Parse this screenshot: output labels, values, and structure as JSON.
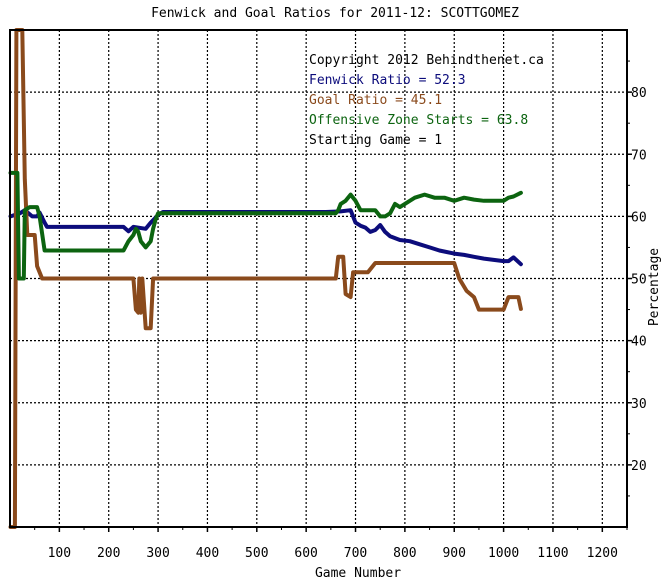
{
  "chart_data": {
    "type": "line",
    "title": "Fenwick and Goal Ratios for 2011-12: SCOTTGOMEZ",
    "xlabel": "Game Number",
    "ylabel": "Percentage",
    "xlim": [
      0,
      1250
    ],
    "ylim": [
      10,
      90
    ],
    "x_ticks": [
      100,
      200,
      300,
      400,
      500,
      600,
      700,
      800,
      900,
      1000,
      1100,
      1200
    ],
    "y_ticks": [
      20,
      30,
      40,
      50,
      60,
      70,
      80
    ],
    "grid": true,
    "legend_placement": "top-right",
    "annotations": [
      {
        "text": "Copyright 2012 Behindthenet.ca",
        "color": "#000000"
      },
      {
        "text": "Fenwick Ratio = 52.3",
        "color": "#0c0c7c"
      },
      {
        "text": "Goal Ratio = 45.1",
        "color": "#8a4a1c"
      },
      {
        "text": "Offensive Zone Starts = 63.8",
        "color": "#0c6410"
      },
      {
        "text": "Starting Game = 1",
        "color": "#000000"
      }
    ],
    "series": [
      {
        "name": "Fenwick Ratio",
        "color": "#0c0c7c",
        "points": [
          [
            1,
            60
          ],
          [
            20,
            60.5
          ],
          [
            30,
            61
          ],
          [
            45,
            60
          ],
          [
            55,
            60
          ],
          [
            60,
            60.6
          ],
          [
            70,
            59
          ],
          [
            75,
            58.3
          ],
          [
            230,
            58.3
          ],
          [
            240,
            57.6
          ],
          [
            250,
            58.3
          ],
          [
            275,
            58
          ],
          [
            285,
            59
          ],
          [
            300,
            60.2
          ],
          [
            310,
            60.7
          ],
          [
            640,
            60.7
          ],
          [
            670,
            60.8
          ],
          [
            690,
            61
          ],
          [
            700,
            59
          ],
          [
            710,
            58.5
          ],
          [
            720,
            58.2
          ],
          [
            730,
            57.5
          ],
          [
            740,
            57.8
          ],
          [
            750,
            58.6
          ],
          [
            760,
            57.5
          ],
          [
            770,
            56.8
          ],
          [
            790,
            56.2
          ],
          [
            810,
            56
          ],
          [
            830,
            55.5
          ],
          [
            850,
            55
          ],
          [
            870,
            54.5
          ],
          [
            900,
            54
          ],
          [
            920,
            53.8
          ],
          [
            940,
            53.5
          ],
          [
            960,
            53.2
          ],
          [
            980,
            53
          ],
          [
            1000,
            52.8
          ],
          [
            1010,
            52.8
          ],
          [
            1020,
            53.4
          ],
          [
            1035,
            52.3
          ]
        ]
      },
      {
        "name": "Goal Ratio",
        "color": "#8a4a1c",
        "points": [
          [
            1,
            10
          ],
          [
            10,
            10
          ],
          [
            13,
            90
          ],
          [
            25,
            90
          ],
          [
            30,
            66
          ],
          [
            35,
            57
          ],
          [
            50,
            57
          ],
          [
            55,
            52
          ],
          [
            65,
            50
          ],
          [
            250,
            50
          ],
          [
            255,
            45
          ],
          [
            260,
            44.5
          ],
          [
            262,
            50
          ],
          [
            265,
            44.5
          ],
          [
            268,
            50
          ],
          [
            275,
            42
          ],
          [
            285,
            42
          ],
          [
            290,
            50
          ],
          [
            660,
            50
          ],
          [
            665,
            53.5
          ],
          [
            675,
            53.5
          ],
          [
            680,
            47.5
          ],
          [
            690,
            47
          ],
          [
            695,
            51
          ],
          [
            725,
            51
          ],
          [
            740,
            52.5
          ],
          [
            900,
            52.5
          ],
          [
            910,
            50
          ],
          [
            925,
            48
          ],
          [
            940,
            47
          ],
          [
            950,
            45
          ],
          [
            1000,
            45
          ],
          [
            1010,
            47
          ],
          [
            1030,
            47
          ],
          [
            1035,
            45.1
          ]
        ]
      },
      {
        "name": "Offensive Zone Starts",
        "color": "#0c6410",
        "points": [
          [
            1,
            67
          ],
          [
            15,
            67
          ],
          [
            18,
            50
          ],
          [
            28,
            50
          ],
          [
            30,
            61
          ],
          [
            40,
            61.5
          ],
          [
            55,
            61.5
          ],
          [
            60,
            60
          ],
          [
            70,
            54.5
          ],
          [
            230,
            54.5
          ],
          [
            240,
            56
          ],
          [
            250,
            57
          ],
          [
            255,
            58
          ],
          [
            260,
            57.5
          ],
          [
            265,
            56
          ],
          [
            275,
            55
          ],
          [
            285,
            56
          ],
          [
            290,
            58
          ],
          [
            295,
            59.5
          ],
          [
            300,
            60.5
          ],
          [
            660,
            60.5
          ],
          [
            665,
            61
          ],
          [
            670,
            62
          ],
          [
            680,
            62.5
          ],
          [
            690,
            63.5
          ],
          [
            700,
            62.5
          ],
          [
            710,
            61
          ],
          [
            740,
            61
          ],
          [
            750,
            60
          ],
          [
            760,
            60
          ],
          [
            770,
            60.5
          ],
          [
            780,
            62
          ],
          [
            790,
            61.5
          ],
          [
            800,
            62
          ],
          [
            810,
            62.5
          ],
          [
            820,
            63
          ],
          [
            840,
            63.5
          ],
          [
            860,
            63
          ],
          [
            880,
            63
          ],
          [
            900,
            62.5
          ],
          [
            920,
            63
          ],
          [
            940,
            62.7
          ],
          [
            960,
            62.5
          ],
          [
            1000,
            62.5
          ],
          [
            1010,
            63
          ],
          [
            1020,
            63.2
          ],
          [
            1035,
            63.8
          ]
        ]
      }
    ]
  }
}
